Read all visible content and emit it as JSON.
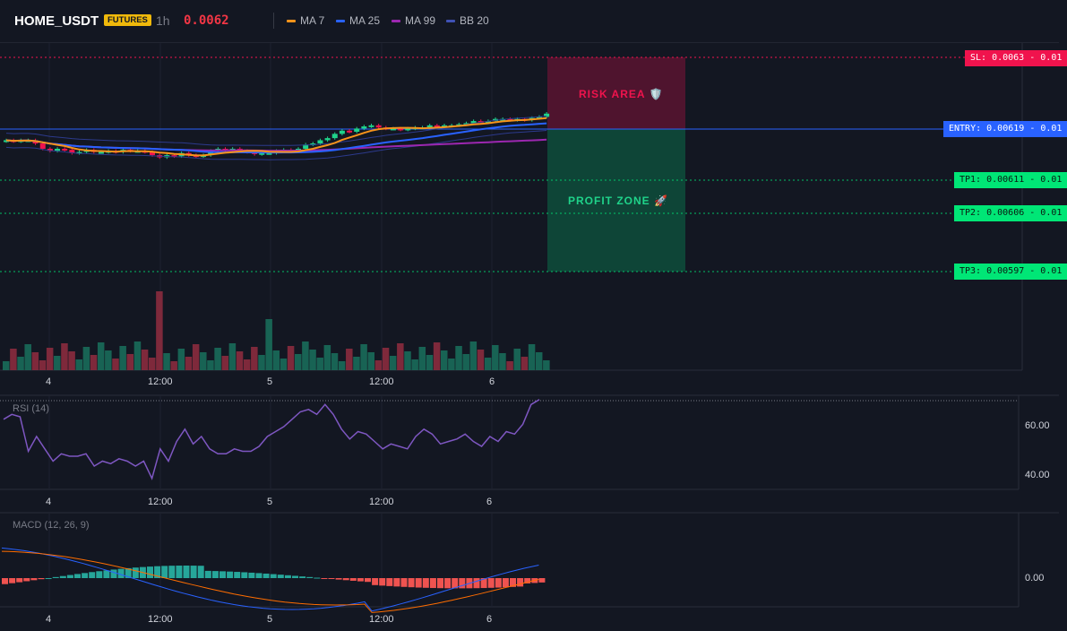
{
  "header": {
    "symbol": "HOME_USDT",
    "badge": "FUTURES",
    "timeframe": "1h",
    "last_price": "0.0062",
    "legend": [
      {
        "label": "MA 7",
        "color": "#f7931a"
      },
      {
        "label": "MA 25",
        "color": "#2962ff"
      },
      {
        "label": "MA 99",
        "color": "#9c27b0"
      },
      {
        "label": "BB 20",
        "color": "#3f51b5"
      }
    ]
  },
  "levels": {
    "sl": {
      "label": "SL: 0.0063",
      "suffix": " - 0.01",
      "value": 0.0063,
      "color": "#f0134d"
    },
    "entry": {
      "label": "ENTRY: 0.00619",
      "suffix": " - 0.01",
      "value": 0.00619,
      "color": "#2962ff"
    },
    "tp1": {
      "label": "TP1: 0.00611",
      "suffix": " - 0.01",
      "value": 0.00611,
      "color": "#00e676"
    },
    "tp2": {
      "label": "TP2: 0.00606",
      "suffix": " - 0.01",
      "value": 0.00606,
      "color": "#00e676"
    },
    "tp3": {
      "label": "TP3: 0.00597",
      "suffix": " - 0.01",
      "value": 0.00597,
      "color": "#00e676"
    }
  },
  "zones": {
    "risk": "RISK AREA 🛡️",
    "profit": "PROFIT ZONE 🚀"
  },
  "x_ticks": [
    "4",
    "12:00",
    "5",
    "12:00",
    "6"
  ],
  "rsi": {
    "title": "RSI (14)",
    "ticks": [
      "60.00",
      "40.00"
    ],
    "values": [
      63,
      65,
      64,
      50,
      56,
      51,
      46,
      49,
      48,
      48,
      49,
      44,
      46,
      45,
      47,
      46,
      44,
      46,
      39,
      51,
      46,
      54,
      59,
      53,
      56,
      51,
      49,
      49,
      51,
      50,
      50,
      52,
      56,
      58,
      60,
      63,
      66,
      67,
      65,
      69,
      65,
      59,
      55,
      58,
      57,
      54,
      51,
      53,
      52,
      51,
      56,
      59,
      57,
      53,
      54,
      55,
      57,
      54,
      52,
      56,
      54,
      58,
      57,
      61,
      69,
      71
    ]
  },
  "macd": {
    "title": "MACD (12, 26, 9)",
    "ticks": [
      "0.00"
    ]
  },
  "colors": {
    "up": "#1fd38a",
    "down": "#f0134d",
    "ma7": "#f7931a",
    "ma25": "#2962ff",
    "ma99": "#9c27b0",
    "bb": "#2c3a8c"
  }
}
